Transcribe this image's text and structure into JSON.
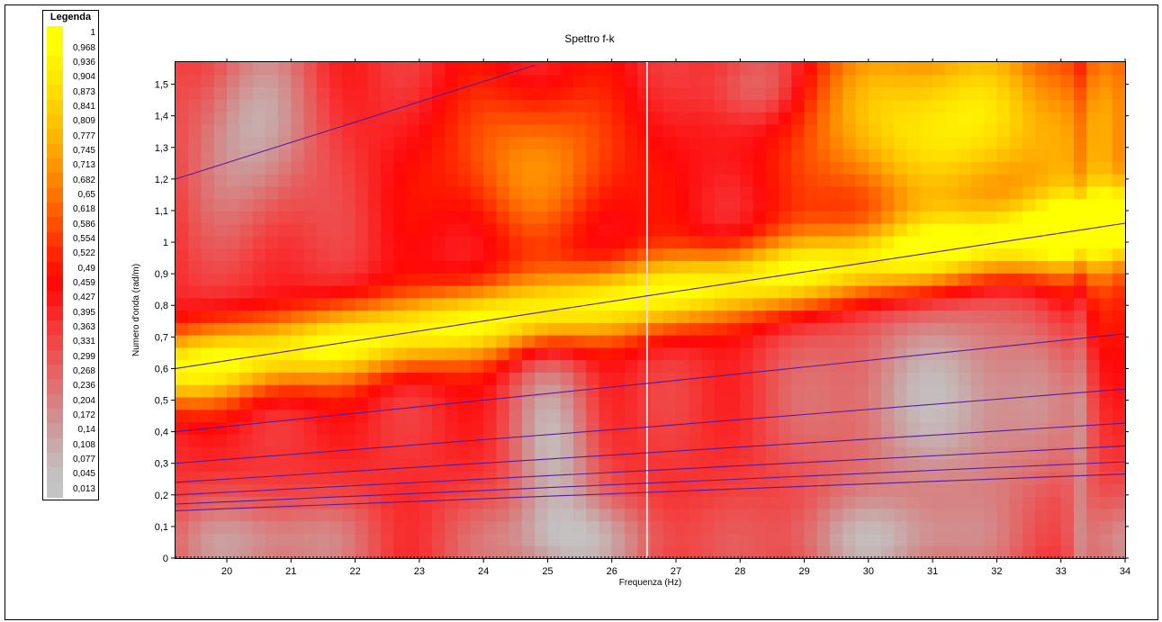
{
  "legend": {
    "title": "Legenda",
    "entries": [
      "1",
      "0,968",
      "0,936",
      "0,904",
      "0,873",
      "0,841",
      "0,809",
      "0,777",
      "0,745",
      "0,713",
      "0,682",
      "0,65",
      "0,618",
      "0,586",
      "0,554",
      "0,522",
      "0,49",
      "0,459",
      "0,427",
      "0,395",
      "0,363",
      "0,331",
      "0,299",
      "0,268",
      "0,236",
      "0,204",
      "0,172",
      "0,14",
      "0,108",
      "0,077",
      "0,045",
      "0,013"
    ],
    "colors": [
      "#ffff00",
      "#ffff00",
      "#fff200",
      "#ffe800",
      "#ffdd00",
      "#ffd000",
      "#ffc300",
      "#ffb600",
      "#ffa600",
      "#ff9600",
      "#ff8500",
      "#ff7400",
      "#ff6000",
      "#ff4e00",
      "#ff3a00",
      "#ff2600",
      "#ff1500",
      "#ff0808",
      "#fd1616",
      "#f92828",
      "#f53838",
      "#f04848",
      "#ea5656",
      "#e46464",
      "#de7272",
      "#d88080",
      "#d28e8e",
      "#cc9c9c",
      "#c8aaaa",
      "#c6b6b6",
      "#c4c0c0",
      "#c4c4c4"
    ]
  },
  "chart_data": {
    "type": "heatmap",
    "title": "Spettro f-k",
    "xlabel": "Frequenza (Hz)",
    "ylabel": "Numero d'onda (rad/m)",
    "xlim": [
      19.2,
      34
    ],
    "ylim": [
      0,
      1.57
    ],
    "x_ticks": [
      "20",
      "21",
      "22",
      "23",
      "24",
      "25",
      "26",
      "27",
      "28",
      "29",
      "30",
      "31",
      "32",
      "33",
      "34"
    ],
    "y_ticks": [
      "0",
      "0,1",
      "0,2",
      "0,3",
      "0,4",
      "0,5",
      "0,6",
      "0,7",
      "0,8",
      "0,9",
      "1",
      "1,1",
      "1,2",
      "1,3",
      "1,4",
      "1,5"
    ],
    "colorscale_range": [
      0.013,
      1
    ],
    "cursor_frequency": 26.55,
    "dispersion_curves": [
      {
        "x": [
          19.2,
          24.8
        ],
        "y": [
          1.2,
          1.56
        ]
      },
      {
        "x": [
          19.2,
          26.55,
          34
        ],
        "y": [
          0.6,
          0.83,
          1.06
        ]
      },
      {
        "x": [
          19.2,
          26.55,
          34
        ],
        "y": [
          0.4,
          0.553,
          0.71
        ]
      },
      {
        "x": [
          19.2,
          26.55,
          34
        ],
        "y": [
          0.3,
          0.415,
          0.535
        ]
      },
      {
        "x": [
          19.2,
          26.55,
          34
        ],
        "y": [
          0.24,
          0.333,
          0.427
        ]
      },
      {
        "x": [
          19.2,
          26.55,
          34
        ],
        "y": [
          0.2,
          0.277,
          0.355
        ]
      },
      {
        "x": [
          19.2,
          26.55,
          34
        ],
        "y": [
          0.171,
          0.237,
          0.305
        ]
      },
      {
        "x": [
          19.2,
          26.55,
          34
        ],
        "y": [
          0.15,
          0.208,
          0.266
        ]
      }
    ]
  }
}
